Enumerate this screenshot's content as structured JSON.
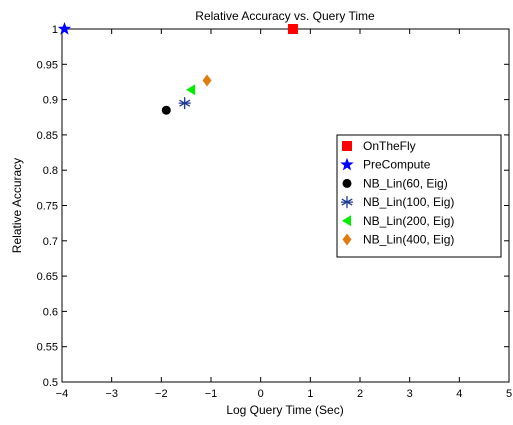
{
  "chart_data": {
    "type": "scatter",
    "title": "Relative Accuracy vs.  Query Time",
    "xlabel": "Log Query Time (Sec)",
    "ylabel": "Relative Accuracy",
    "xlim": [
      -4,
      5
    ],
    "ylim": [
      0.5,
      1
    ],
    "xticks": [
      -4,
      -3,
      -2,
      -1,
      0,
      1,
      2,
      3,
      4,
      5
    ],
    "xtick_labels": [
      "−4",
      "−3",
      "−2",
      "−1",
      "0",
      "1",
      "2",
      "3",
      "4",
      "5"
    ],
    "yticks": [
      0.5,
      0.55,
      0.6,
      0.65,
      0.7,
      0.75,
      0.8,
      0.85,
      0.9,
      0.95,
      1
    ],
    "ytick_labels": [
      "0.5",
      "0.55",
      "0.6",
      "0.65",
      "0.7",
      "0.75",
      "0.8",
      "0.85",
      "0.9",
      "0.95",
      "1"
    ],
    "grid": false,
    "legend_position": "right",
    "series": [
      {
        "name": "OnTheFly",
        "marker": "square",
        "color": "#ff0000",
        "x": 0.65,
        "y": 1.0
      },
      {
        "name": "PreCompute",
        "marker": "star",
        "color": "#0000ff",
        "x": -3.95,
        "y": 1.0
      },
      {
        "name": "NB_Lin(60, Eig)",
        "marker": "circle",
        "color": "#000000",
        "x": -1.9,
        "y": 0.885
      },
      {
        "name": "NB_Lin(100, Eig)",
        "marker": "asterisk",
        "color": "#1f3a93",
        "x": -1.53,
        "y": 0.895
      },
      {
        "name": "NB_Lin(200, Eig)",
        "marker": "triangle-left",
        "color": "#00ee00",
        "x": -1.4,
        "y": 0.914
      },
      {
        "name": "NB_Lin(400, Eig)",
        "marker": "diamond",
        "color": "#e07b10",
        "x": -1.08,
        "y": 0.927
      }
    ]
  }
}
